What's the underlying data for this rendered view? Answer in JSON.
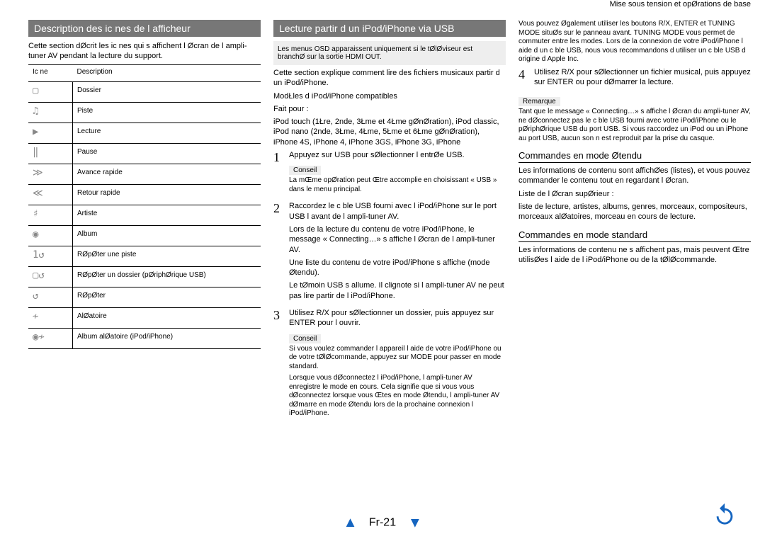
{
  "breadcrumb": "Mise sous tension et opØrations de base",
  "col1": {
    "title": "Description des ic nes de l afficheur",
    "intro": "Cette section dØcrit les ic nes qui s affichent   l Øcran de l ampli-tuner AV pendant la lecture du support.",
    "th1": "Ic ne",
    "th2": "Description",
    "rows": [
      {
        "i": "▢",
        "d": "Dossier"
      },
      {
        "i": "♫",
        "d": "Piste"
      },
      {
        "i": "▶",
        "d": "Lecture"
      },
      {
        "i": "‖",
        "d": "Pause"
      },
      {
        "i": "≫",
        "d": "Avance rapide"
      },
      {
        "i": "≪",
        "d": "Retour rapide"
      },
      {
        "i": "♯",
        "d": "Artiste"
      },
      {
        "i": "◉",
        "d": "Album"
      },
      {
        "i": "1↺",
        "d": "RØpØter une piste"
      },
      {
        "i": "▢↺",
        "d": "RØpØter un dossier (pØriphØrique USB)"
      },
      {
        "i": "↺",
        "d": "RØpØter"
      },
      {
        "i": "≁",
        "d": "AlØatoire"
      },
      {
        "i": "◉≁",
        "d": "Album alØatoire (iPod/iPhone)"
      }
    ]
  },
  "col2": {
    "title": "Lecture   partir d un iPod/iPhone via USB",
    "note1": "Les menus OSD apparaissent uniquement si le tØlØviseur est branchØ sur la sortie HDMI OUT.",
    "p1": "Cette section explique comment lire des fichiers musicaux   partir d un iPod/iPhone.",
    "p2": "ModŁles d iPod/iPhone compatibles",
    "p2b": "Fait pour :",
    "p3": "iPod touch (1Łre, 2nde, 3Łme et 4Łme gØnØration), iPod classic, iPod nano (2nde, 3Łme, 4Łme, 5Łme et 6Łme gØnØration), iPhone 4S, iPhone 4, iPhone 3GS, iPhone 3G, iPhone",
    "step1": "Appuyez sur USB pour sØlectionner l entrØe USB.",
    "tip_label": "Conseil",
    "tip1": "La mŒme opØration peut Œtre accomplie en choisissant « USB » dans le menu principal.",
    "step2a": "Raccordez le c ble USB fourni avec l iPod/iPhone sur le port USB   l avant de l ampli-tuner AV.",
    "step2b": "Lors de la lecture du contenu de votre iPod/iPhone, le message « Connecting…» s affiche   l Øcran de l ampli-tuner AV.",
    "step2c": "Une liste du contenu de votre iPod/iPhone s affiche (mode Øtendu).",
    "step2d": "Le tØmoin USB s allume. Il clignote si l ampli-tuner AV ne peut pas lire   partir de l iPod/iPhone.",
    "step3": "Utilisez R/X pour sØlectionner un dossier, puis appuyez sur ENTER pour l ouvrir.",
    "tip2a": "Si vous voulez commander l appareil   l aide de votre iPod/iPhone ou de votre tØlØcommande, appuyez sur MODE pour passer en mode standard.",
    "tip2b": "Lorsque vous dØconnectez l iPod/iPhone, l ampli-tuner AV enregistre le mode en cours. Cela signifie que si vous vous dØconnectez lorsque vous Œtes en mode Øtendu, l ampli-tuner AV dØmarre en mode Øtendu lors de la prochaine connexion   l iPod/iPhone."
  },
  "col3": {
    "p0": "Vous pouvez Øgalement utiliser les boutons R/X, ENTER et TUNING MODE situØs sur le panneau avant. TUNING MODE vous permet de commuter entre les modes. Lors de la connexion de votre iPod/iPhone   l aide d un c ble USB, nous vous recommandons d utiliser un c ble USB d origine d Apple Inc.",
    "step4": "Utilisez R/X pour sØlectionner un fichier musical, puis appuyez sur ENTER ou   pour dØmarrer la lecture.",
    "remark_label": "Remarque",
    "remark": "Tant que le message « Connecting…» s affiche   l Øcran du ampli-tuner AV, ne dØconnectez pas le c ble USB fourni avec votre iPod/iPhone ou le pØriphØrique USB du port USB. Si vous raccordez un iPod ou un iPhone au port USB, aucun son n est reproduit par la prise du casque.",
    "h1": "Commandes en mode Øtendu",
    "h1p": "Les informations de contenu sont affichØes (listes), et vous pouvez commander le contenu tout en regardant l Øcran.",
    "h1p2": "Liste de l Øcran supØrieur :",
    "h1p3": "liste de lecture, artistes, albums, genres, morceaux, compositeurs, morceaux alØatoires, morceau en cours de lecture.",
    "h2": "Commandes en mode standard",
    "h2p": "Les informations de contenu ne s affichent pas, mais peuvent Œtre utilisØes   l aide de l iPod/iPhone ou de la tØlØcommande."
  },
  "pagenum": "Fr-21"
}
